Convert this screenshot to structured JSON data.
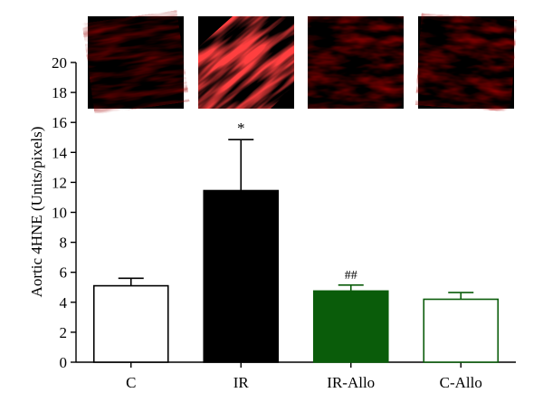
{
  "chart_data": {
    "type": "bar",
    "title": "",
    "xlabel": "",
    "ylabel": "Aortic 4HNE (Units/pixels)",
    "ylim": [
      0,
      20
    ],
    "yticks": [
      0,
      2,
      4,
      6,
      8,
      10,
      12,
      14,
      16,
      18,
      20
    ],
    "categories": [
      "C",
      "IR",
      "IR-Allo",
      "C-Allo"
    ],
    "values": [
      5.1,
      11.45,
      4.75,
      4.2
    ],
    "errors": [
      0.5,
      3.4,
      0.4,
      0.45
    ],
    "annotations": [
      "",
      "*",
      "##",
      ""
    ],
    "bar_fill": [
      "#ffffff",
      "#000000",
      "#0a5c0a",
      "#ffffff"
    ],
    "bar_stroke": [
      "#000000",
      "#000000",
      "#0a5c0a",
      "#0a5c0a"
    ],
    "micrographs": [
      {
        "category": "C",
        "intensity": "very faint red"
      },
      {
        "category": "IR",
        "intensity": "intense red"
      },
      {
        "category": "IR-Allo",
        "intensity": "faint red"
      },
      {
        "category": "C-Allo",
        "intensity": "faint red"
      }
    ],
    "grid": false
  }
}
